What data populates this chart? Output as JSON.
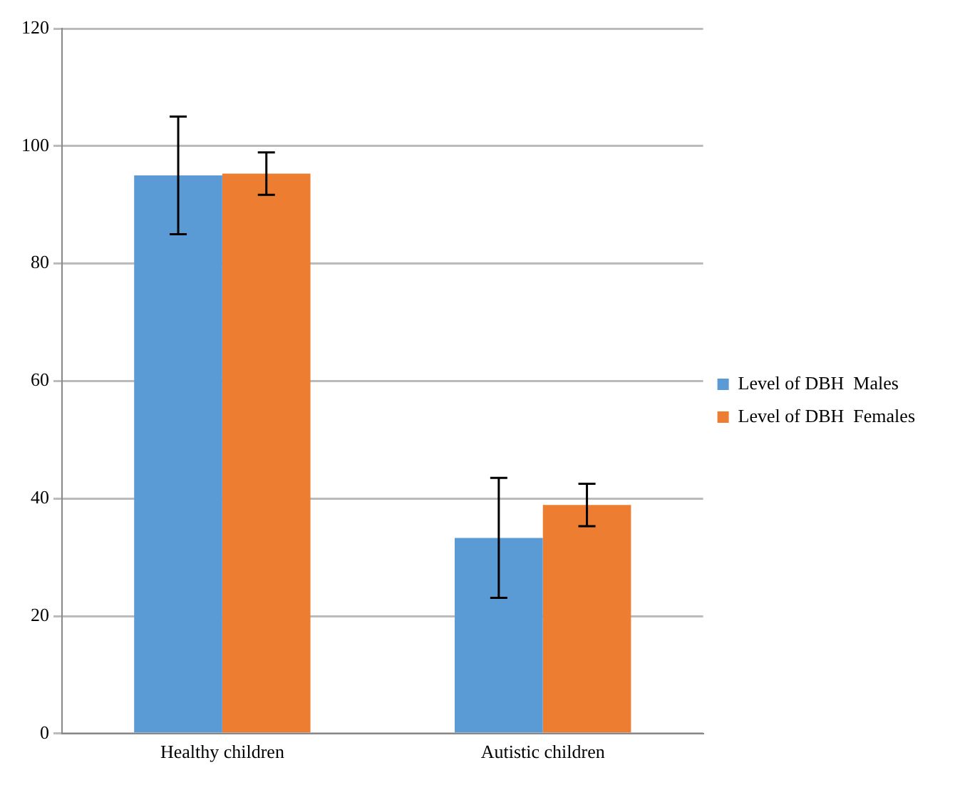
{
  "chart_data": {
    "type": "bar",
    "categories": [
      "Healthy children",
      "Autistic children"
    ],
    "series": [
      {
        "name": "Level of DBH  Males",
        "color": "#5b9bd5",
        "values": [
          95,
          33.3
        ],
        "errors": [
          10,
          10.2
        ]
      },
      {
        "name": "Level of DBH  Females",
        "color": "#ed7d31",
        "values": [
          95.3,
          38.9
        ],
        "errors": [
          3.6,
          3.6
        ]
      }
    ],
    "ylim": [
      0,
      120
    ],
    "yticks": [
      0,
      20,
      40,
      60,
      80,
      100,
      120
    ],
    "grid": "y",
    "legend": "right"
  }
}
